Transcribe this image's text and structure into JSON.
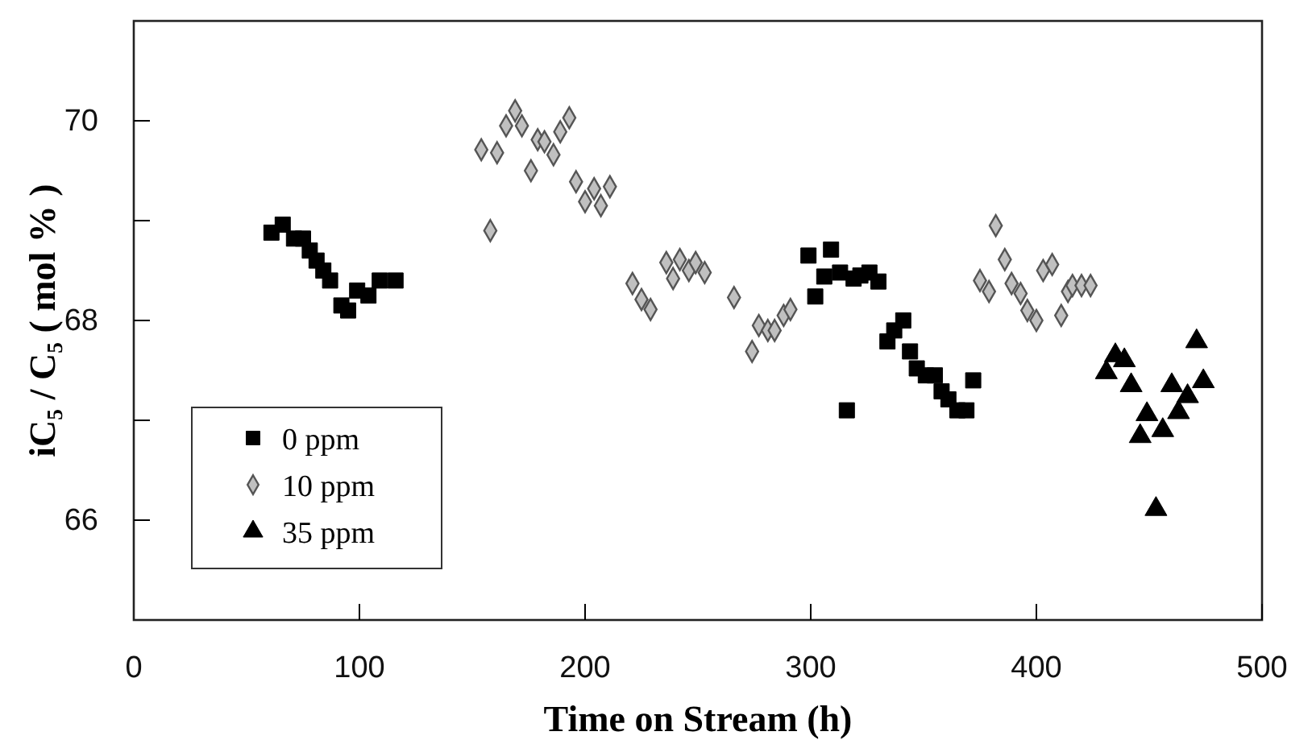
{
  "chart_data": {
    "type": "scatter",
    "xlabel": "Time on Stream (h)",
    "ylabel": "iC₅ / C₅ ( mol % )",
    "xlim": [
      0,
      500
    ],
    "ylim": [
      65,
      71
    ],
    "xticks": [
      0,
      100,
      200,
      300,
      400,
      500
    ],
    "yticks": [
      66,
      {
        "value": 67,
        "label": null
      },
      68,
      {
        "value": 69,
        "label": null
      },
      70
    ],
    "legend": "bottom left",
    "grid": false,
    "series": [
      {
        "name": "0 ppm",
        "color": "#000000",
        "marker": "square",
        "x": [
          61,
          66,
          71,
          75,
          78,
          81,
          84,
          87,
          92,
          95,
          99,
          104,
          109,
          116,
          299,
          302,
          306,
          309,
          313,
          316,
          319,
          322,
          326,
          330,
          334,
          337,
          341,
          344,
          347,
          351,
          355,
          358,
          361,
          365,
          369,
          372
        ],
        "values": [
          68.88,
          68.96,
          68.82,
          68.82,
          68.7,
          68.6,
          68.5,
          68.4,
          68.15,
          68.1,
          68.3,
          68.25,
          68.4,
          68.4,
          68.65,
          68.24,
          68.44,
          68.71,
          68.48,
          67.1,
          68.42,
          68.45,
          68.48,
          68.39,
          67.79,
          67.9,
          68.0,
          67.69,
          67.52,
          67.45,
          67.45,
          67.29,
          67.21,
          67.1,
          67.1,
          67.4
        ]
      },
      {
        "name": "10 ppm",
        "color": "#c0c0c0",
        "marker": "diamond",
        "x": [
          154,
          158,
          161,
          165,
          169,
          172,
          176,
          179,
          182,
          186,
          189,
          193,
          196,
          200,
          204,
          207,
          211,
          221,
          225,
          229,
          236,
          239,
          242,
          246,
          249,
          253,
          266,
          274,
          277,
          281,
          284,
          288,
          291,
          375,
          379,
          382,
          386,
          389,
          393,
          396,
          400,
          403,
          407,
          411,
          414,
          416,
          420,
          424
        ],
        "values": [
          69.71,
          68.9,
          69.68,
          69.95,
          70.1,
          69.95,
          69.5,
          69.81,
          69.79,
          69.66,
          69.89,
          70.03,
          69.39,
          69.19,
          69.32,
          69.15,
          69.34,
          68.37,
          68.21,
          68.11,
          68.58,
          68.42,
          68.61,
          68.5,
          68.58,
          68.48,
          68.23,
          67.69,
          67.95,
          67.9,
          67.9,
          68.05,
          68.11,
          68.4,
          68.29,
          68.95,
          68.61,
          68.37,
          68.27,
          68.1,
          68.0,
          68.5,
          68.56,
          68.05,
          68.29,
          68.35,
          68.35,
          68.35
        ]
      },
      {
        "name": "35 ppm",
        "color": "#000000",
        "marker": "triangle",
        "x": [
          431,
          435,
          439,
          442,
          446,
          449,
          453,
          456,
          460,
          463,
          467,
          471,
          474
        ],
        "values": [
          67.48,
          67.65,
          67.6,
          67.35,
          66.84,
          67.06,
          66.11,
          66.9,
          67.35,
          67.08,
          67.24,
          67.79,
          67.39
        ]
      }
    ]
  }
}
